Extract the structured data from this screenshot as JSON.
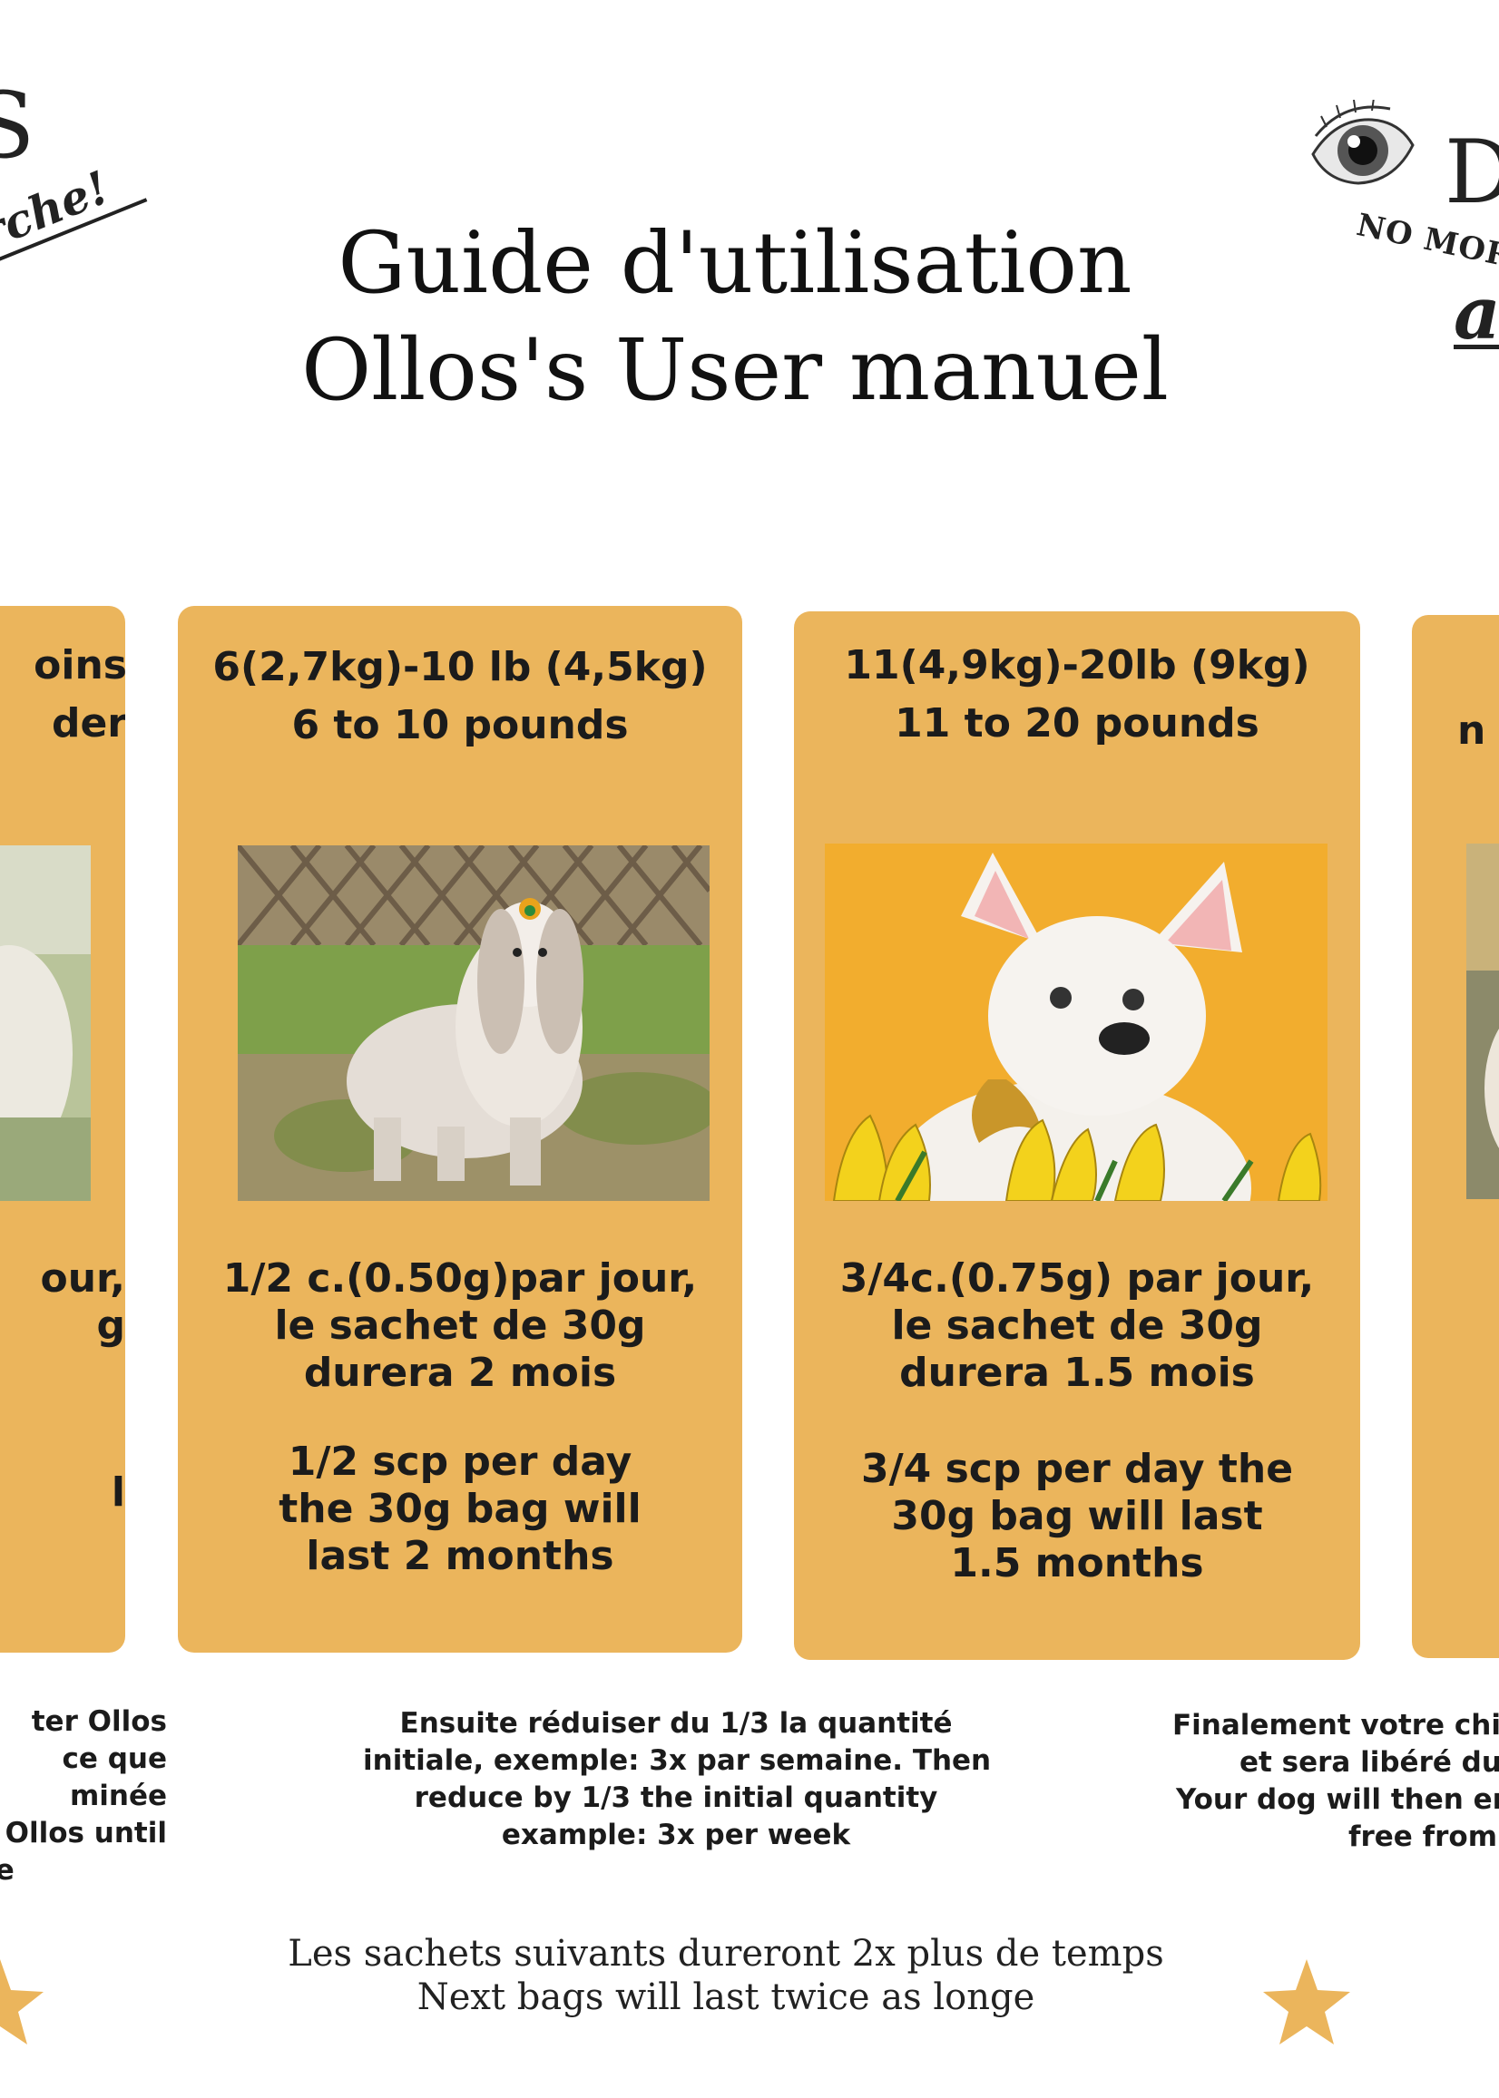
{
  "title": {
    "line1": "Guide d'utilisation",
    "line2": "Ollos's User manuel"
  },
  "logo_left": {
    "big": "S",
    "tag": "s arche!"
  },
  "logo_right": {
    "big": "D",
    "nomore": "NO MOR",
    "script": "a"
  },
  "cards": [
    {
      "head1": "oins",
      "head2": "der",
      "fr1": "our,",
      "fr2": "g",
      "fr3": "",
      "en1": "",
      "en2": "l",
      "en3": ""
    },
    {
      "head1": "6(2,7kg)-10 lb (4,5kg)",
      "head2": "6 to 10 pounds",
      "fr1": "1/2 c.(0.50g)par jour,",
      "fr2": "le sachet de 30g",
      "fr3": "durera  2 mois",
      "en1": "1/2 scp  per day",
      "en2": "the 30g bag will",
      "en3": "last 2 months"
    },
    {
      "head1": "11(4,9kg)-20lb (9kg)",
      "head2": "11 to 20 pounds",
      "fr1": "3/4c.(0.75g) par jour,",
      "fr2": "le sachet de 30g",
      "fr3": "durera 1.5 mois",
      "en1": "3/4 scp per day the",
      "en2": "30g bag will last",
      "en3": "1.5 months"
    },
    {
      "head1": "",
      "head2": "n"
    }
  ],
  "notes": {
    "left": [
      "ter Ollos",
      "ce que",
      "minée",
      "g Ollos until",
      "he"
    ],
    "middle": [
      "Ensuite réduiser du 1/3 la quantité",
      "initiale, exemple: 3x par semaine. Then",
      "reduce by 1/3 the initial quantity",
      "example: 3x per week"
    ],
    "right": [
      "Finalement votre chie",
      "et sera libéré du",
      "Your dog will then enj",
      "free from"
    ]
  },
  "footer": {
    "line1": "Les sachets suivants dureront  2x plus de temps",
    "line2": "Next bags will last twice as longe"
  },
  "colors": {
    "card": "#ebb55c",
    "star": "#ebb55c"
  }
}
